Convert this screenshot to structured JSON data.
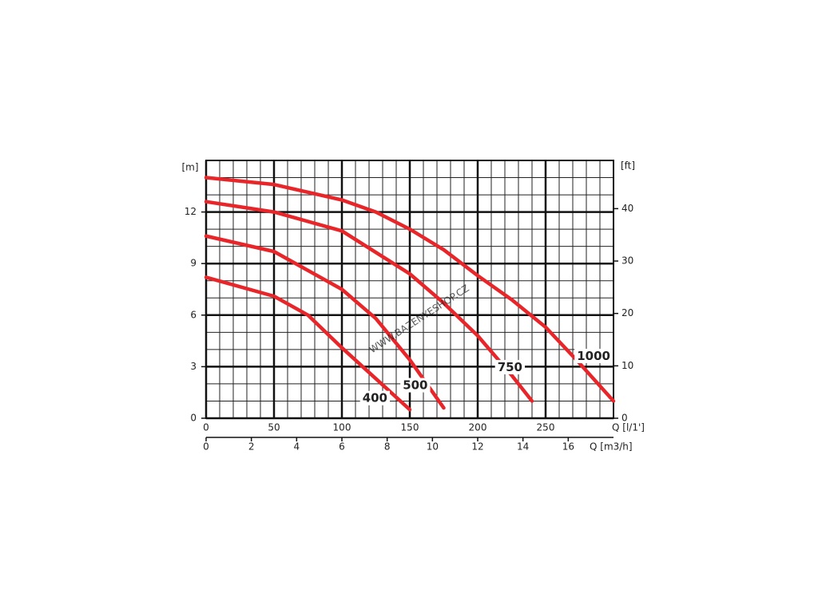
{
  "chart_data": {
    "type": "line",
    "y_label": "[m]",
    "y2_label": "[ft]",
    "x_label": "Q [l/1']",
    "x2_label": "Q [m3/h]",
    "watermark": "WWW.BAZENYESHOP.CZ",
    "xlim": [
      0,
      300
    ],
    "xticks": [
      0,
      50,
      100,
      150,
      200,
      250
    ],
    "x2lim": [
      0,
      18
    ],
    "x2ticks": [
      0,
      2,
      4,
      6,
      8,
      10,
      12,
      14,
      16
    ],
    "ylim": [
      0,
      15
    ],
    "yticks": [
      0,
      3,
      6,
      9,
      12
    ],
    "y2lim": [
      0,
      49.2
    ],
    "y2ticks": [
      0,
      10,
      20,
      30,
      40
    ],
    "grid": true,
    "series": [
      {
        "name": "400",
        "color": "#e8262a",
        "x": [
          0,
          50,
          75,
          100,
          125,
          150
        ],
        "values": [
          8.2,
          7.1,
          6.0,
          4.1,
          2.3,
          0.5
        ]
      },
      {
        "name": "500",
        "color": "#e8262a",
        "x": [
          0,
          50,
          100,
          125,
          150,
          175
        ],
        "values": [
          10.6,
          9.7,
          7.5,
          5.8,
          3.4,
          0.6
        ]
      },
      {
        "name": "750",
        "color": "#e8262a",
        "x": [
          0,
          50,
          100,
          150,
          175,
          200,
          225,
          240
        ],
        "values": [
          12.6,
          12.0,
          10.9,
          8.4,
          6.7,
          4.8,
          2.5,
          1.0
        ]
      },
      {
        "name": "1000",
        "color": "#e8262a",
        "x": [
          0,
          50,
          100,
          125,
          150,
          175,
          200,
          225,
          250,
          275,
          300
        ],
        "values": [
          14.0,
          13.6,
          12.7,
          12.0,
          11.0,
          9.8,
          8.3,
          6.9,
          5.3,
          3.2,
          1.0
        ]
      }
    ]
  }
}
